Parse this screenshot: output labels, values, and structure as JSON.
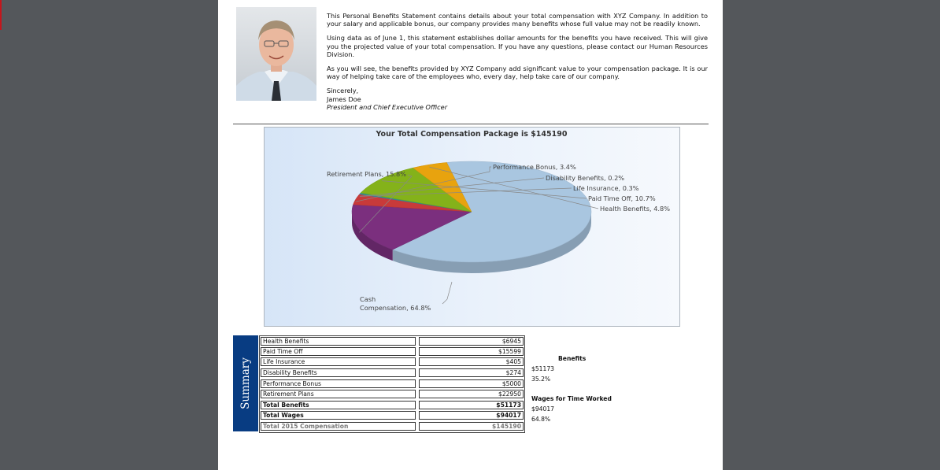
{
  "letter": {
    "paragraphs": [
      "This Personal Benefits Statement contains details about your total compensation with XYZ Company. In addition to your salary and applicable bonus, our company provides many benefits whose full value may not be readily known.",
      "Using data as of June 1, this statement establishes dollar amounts for the benefits you have received. This will give you the projected value of your total compensation. If you have any questions, please contact our Human Resources Division.",
      "As you will see, the benefits provided by XYZ Company add significant value to your compensation package. It is our way of helping take care of the employees who, every day, help take care of our company."
    ],
    "closing": "Sincerely,",
    "signer_name": "James Doe",
    "signer_title": "President and Chief Executive Officer"
  },
  "chart_data": {
    "type": "pie",
    "title": "Your Total Compensation Package is $145190",
    "slices": [
      {
        "label": "Cash Compensation",
        "value": 64.8,
        "display": "Cash Compensation, 64.8%",
        "color": "#a9c6e0"
      },
      {
        "label": "Retirement Plans",
        "value": 15.8,
        "display": "Retirement Plans, 15.8%",
        "color": "#7b2f7e"
      },
      {
        "label": "Performance Bonus",
        "value": 3.4,
        "display": "Performance Bonus, 3.4%",
        "color": "#c83a3a"
      },
      {
        "label": "Disability Benefits",
        "value": 0.2,
        "display": "Disability Benefits, 0.2%",
        "color": "#3e7fb3"
      },
      {
        "label": "Life Insurance",
        "value": 0.3,
        "display": "Life Insurance, 0.3%",
        "color": "#3aa27a"
      },
      {
        "label": "Paid Time Off",
        "value": 10.7,
        "display": "Paid Time Off, 10.7%",
        "color": "#84b21a"
      },
      {
        "label": "Health Benefits",
        "value": 4.8,
        "display": "Health Benefits, 4.8%",
        "color": "#e8a30e"
      }
    ]
  },
  "summary": {
    "tab_label": "Summary",
    "rows": [
      {
        "label": "Health Benefits",
        "value": "$6945"
      },
      {
        "label": "Paid Time Off",
        "value": "$15599"
      },
      {
        "label": "Life Insurance",
        "value": "$405"
      },
      {
        "label": "Disability Benefits",
        "value": "$274"
      },
      {
        "label": "Performance Bonus",
        "value": "$5000"
      },
      {
        "label": "Retirement Plans",
        "value": "$22950"
      }
    ],
    "total_benefits": {
      "label": "Total Benefits",
      "value": "$51173"
    },
    "total_wages": {
      "label": "Total Wages",
      "value": "$94017"
    },
    "total_comp": {
      "label": "Total 2015 Compensation",
      "value": "$145190"
    }
  },
  "side": {
    "benefits_heading": "Benefits",
    "benefits_amount": "$51173",
    "benefits_percent": "35.2%",
    "wages_heading": "Wages for Time Worked",
    "wages_amount": "$94017",
    "wages_percent": "64.8%"
  }
}
